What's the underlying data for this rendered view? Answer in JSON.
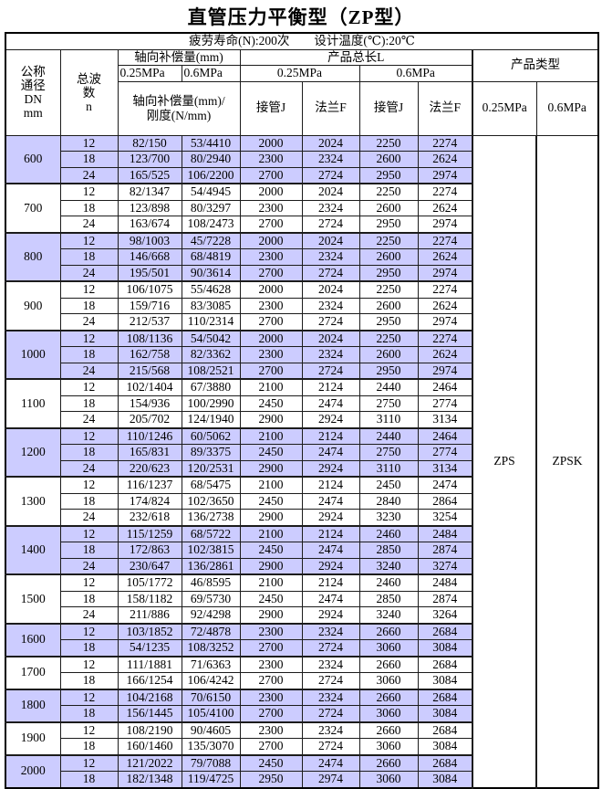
{
  "page": {
    "title": "直管压力平衡型（ZP型）",
    "subheader": "疲劳寿命(N):200次　　设计温度(℃):20℃"
  },
  "header": {
    "dn": "公称\n通径\nDN\nmm",
    "wave": "总波\n数\nn",
    "axial_comp": "轴向补偿量(mm)",
    "p025": "0.25MPa",
    "p06": "0.6MPa",
    "total_length": "产品总长L",
    "comp_stiffness": "轴向补偿量(mm)/\n刚度(N/mm)",
    "pipe_j": "接管J",
    "flange_f": "法兰F",
    "product_type": "产品类型"
  },
  "product_types": {
    "p025": "ZPS",
    "p06": "ZPSK"
  },
  "colors": {
    "highlight": "#ccccff",
    "border": "#1c1c1c"
  },
  "table": {
    "columns": [
      "总波数n",
      "轴向补偿量/刚度 0.25MPa",
      "轴向补偿量/刚度 0.6MPa",
      "接管J 0.25MPa",
      "法兰F 0.25MPa",
      "接管J 0.6MPa",
      "法兰F 0.6MPa"
    ],
    "groups": [
      {
        "dn": "600",
        "highlight": true,
        "rows": [
          [
            "12",
            "82/150",
            "53/4410",
            "2000",
            "2024",
            "2250",
            "2274"
          ],
          [
            "18",
            "123/700",
            "80/2940",
            "2300",
            "2324",
            "2600",
            "2624"
          ],
          [
            "24",
            "165/525",
            "106/2200",
            "2700",
            "2724",
            "2950",
            "2974"
          ]
        ]
      },
      {
        "dn": "700",
        "highlight": false,
        "rows": [
          [
            "12",
            "82/1347",
            "54/4945",
            "2000",
            "2024",
            "2250",
            "2274"
          ],
          [
            "18",
            "123/898",
            "80/3297",
            "2300",
            "2324",
            "2600",
            "2624"
          ],
          [
            "24",
            "163/674",
            "108/2473",
            "2700",
            "2724",
            "2950",
            "2974"
          ]
        ]
      },
      {
        "dn": "800",
        "highlight": true,
        "rows": [
          [
            "12",
            "98/1003",
            "45/7228",
            "2000",
            "2024",
            "2250",
            "2274"
          ],
          [
            "18",
            "146/668",
            "68/4819",
            "2300",
            "2324",
            "2600",
            "2624"
          ],
          [
            "24",
            "195/501",
            "90/3614",
            "2700",
            "2724",
            "2950",
            "2974"
          ]
        ]
      },
      {
        "dn": "900",
        "highlight": false,
        "rows": [
          [
            "12",
            "106/1075",
            "55/4628",
            "2000",
            "2024",
            "2250",
            "2274"
          ],
          [
            "18",
            "159/716",
            "83/3085",
            "2300",
            "2324",
            "2600",
            "2624"
          ],
          [
            "24",
            "212/537",
            "110/2314",
            "2700",
            "2724",
            "2950",
            "2974"
          ]
        ]
      },
      {
        "dn": "1000",
        "highlight": true,
        "rows": [
          [
            "12",
            "108/1136",
            "54/5042",
            "2000",
            "2024",
            "2250",
            "2274"
          ],
          [
            "18",
            "162/758",
            "82/3362",
            "2300",
            "2324",
            "2600",
            "2624"
          ],
          [
            "24",
            "215/568",
            "108/2521",
            "2700",
            "2724",
            "2950",
            "2974"
          ]
        ]
      },
      {
        "dn": "1100",
        "highlight": false,
        "rows": [
          [
            "12",
            "102/1404",
            "67/3880",
            "2100",
            "2124",
            "2440",
            "2464"
          ],
          [
            "18",
            "154/936",
            "100/2990",
            "2450",
            "2474",
            "2750",
            "2774"
          ],
          [
            "24",
            "205/702",
            "124/1940",
            "2900",
            "2924",
            "3110",
            "3134"
          ]
        ]
      },
      {
        "dn": "1200",
        "highlight": true,
        "rows": [
          [
            "12",
            "110/1246",
            "60/5062",
            "2100",
            "2124",
            "2440",
            "2464"
          ],
          [
            "18",
            "165/831",
            "89/3375",
            "2450",
            "2474",
            "2750",
            "2774"
          ],
          [
            "24",
            "220/623",
            "120/2531",
            "2900",
            "2924",
            "3110",
            "3134"
          ]
        ]
      },
      {
        "dn": "1300",
        "highlight": false,
        "rows": [
          [
            "12",
            "116/1237",
            "68/5475",
            "2100",
            "2124",
            "2450",
            "2474"
          ],
          [
            "18",
            "174/824",
            "102/3650",
            "2450",
            "2474",
            "2840",
            "2864"
          ],
          [
            "24",
            "232/618",
            "136/2738",
            "2900",
            "2924",
            "3230",
            "3254"
          ]
        ]
      },
      {
        "dn": "1400",
        "highlight": true,
        "rows": [
          [
            "12",
            "115/1259",
            "68/5722",
            "2100",
            "2124",
            "2460",
            "2484"
          ],
          [
            "18",
            "172/863",
            "102/3815",
            "2450",
            "2474",
            "2850",
            "2874"
          ],
          [
            "24",
            "230/647",
            "136/2861",
            "2900",
            "2924",
            "3240",
            "3274"
          ]
        ]
      },
      {
        "dn": "1500",
        "highlight": false,
        "rows": [
          [
            "12",
            "105/1772",
            "46/8595",
            "2100",
            "2124",
            "2460",
            "2484"
          ],
          [
            "18",
            "158/1182",
            "69/5730",
            "2450",
            "2474",
            "2850",
            "2874"
          ],
          [
            "24",
            "211/886",
            "92/4298",
            "2900",
            "2924",
            "3240",
            "3264"
          ]
        ]
      },
      {
        "dn": "1600",
        "highlight": true,
        "rows": [
          [
            "12",
            "103/1852",
            "72/4878",
            "2300",
            "2324",
            "2660",
            "2684"
          ],
          [
            "18",
            "54/1235",
            "108/3252",
            "2700",
            "2724",
            "3060",
            "3084"
          ]
        ]
      },
      {
        "dn": "1700",
        "highlight": false,
        "rows": [
          [
            "12",
            "111/1881",
            "71/6363",
            "2300",
            "2324",
            "2660",
            "2684"
          ],
          [
            "18",
            "166/1254",
            "106/4242",
            "2700",
            "2724",
            "3060",
            "3084"
          ]
        ]
      },
      {
        "dn": "1800",
        "highlight": true,
        "rows": [
          [
            "12",
            "104/2168",
            "70/6150",
            "2300",
            "2324",
            "2660",
            "2684"
          ],
          [
            "18",
            "156/1445",
            "105/4100",
            "2700",
            "2724",
            "3060",
            "3084"
          ]
        ]
      },
      {
        "dn": "1900",
        "highlight": false,
        "rows": [
          [
            "12",
            "108/2190",
            "90/4605",
            "2300",
            "2324",
            "2660",
            "2684"
          ],
          [
            "18",
            "160/1460",
            "135/3070",
            "2700",
            "2724",
            "3060",
            "3084"
          ]
        ]
      },
      {
        "dn": "2000",
        "highlight": true,
        "rows": [
          [
            "12",
            "121/2022",
            "79/7088",
            "2450",
            "2474",
            "2660",
            "2684"
          ],
          [
            "18",
            "182/1348",
            "119/4725",
            "2950",
            "2974",
            "3060",
            "3084"
          ]
        ]
      }
    ]
  }
}
